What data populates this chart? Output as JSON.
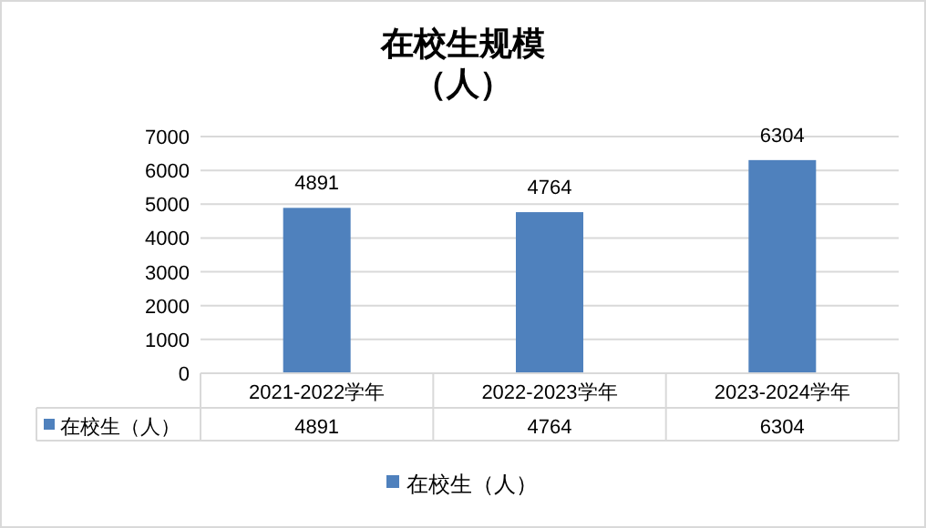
{
  "chart_data": {
    "type": "bar",
    "title": "在校生规模",
    "subtitle": "（人）",
    "categories": [
      "2021-2022学年",
      "2022-2023学年",
      "2023-2024学年"
    ],
    "series": [
      {
        "name": "在校生（人）",
        "color": "#4f81bd",
        "values": [
          4891,
          4764,
          6304
        ],
        "value_labels": [
          "4891",
          "4764",
          "6304"
        ]
      }
    ],
    "ylim": [
      0,
      7000
    ],
    "yticks": [
      0,
      1000,
      2000,
      3000,
      4000,
      5000,
      6000,
      7000
    ],
    "annotations": [
      "4891",
      "4764",
      "6304"
    ],
    "grid": "y",
    "legend": "bottom",
    "data_labels": true
  }
}
